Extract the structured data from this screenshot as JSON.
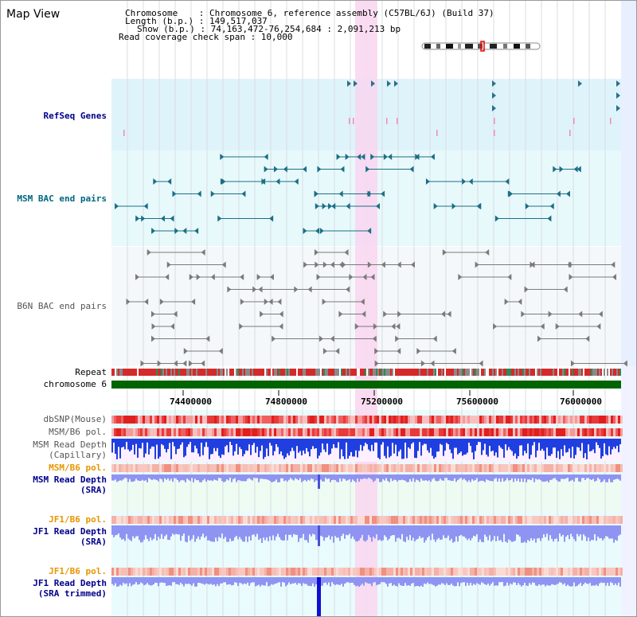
{
  "view_title": "Map View",
  "header": {
    "chromosome": "Chromosome    : Chromosome 6, reference assembly (C57BL/6J) (Build 37)",
    "length": "Length (b.p.) : 149,517,037",
    "show": "Show (b.p.) : 74,163,472-76,254,684 : 2,091,213 bp",
    "coverage": "Read coverage check span : 10,000"
  },
  "tracks": {
    "refseq": "RefSeq Genes",
    "msm_bac": "MSM BAC end pairs",
    "b6n_bac": "B6N BAC end pairs",
    "repeat": "Repeat",
    "chromosome": "chromosome 6",
    "dbsnp": "dbSNP(Mouse)",
    "msm_b6_pol_1": "MSM/B6 pol.",
    "msm_depth_cap_1": "MSM Read Depth",
    "msm_depth_cap_2": "(Capillary)",
    "msm_b6_pol_2": "MSM/B6 pol.",
    "msm_depth_sra_1": "MSM Read Depth",
    "msm_depth_sra_2": "(SRA)",
    "jf1_b6_pol_1": "JF1/B6 pol.",
    "jf1_depth_sra_1": "JF1 Read Depth",
    "jf1_depth_sra_2": "(SRA)",
    "jf1_b6_pol_2": "JF1/B6 pol.",
    "jf1_depth_trim_1": "JF1 Read Depth",
    "jf1_depth_trim_2": "(SRA trimmed)"
  },
  "axis_ticks": [
    "74400000",
    "74800000",
    "75200000",
    "75600000",
    "76000000"
  ],
  "colors": {
    "refseq_bg": "#dff3fb",
    "msm_bac_bg": "#e8f9fb",
    "highlight": "#f9d6f0",
    "chromosome_bar": "#006400",
    "depth_blue": "#1f3fe0",
    "depth_light": "#8f94f2"
  }
}
